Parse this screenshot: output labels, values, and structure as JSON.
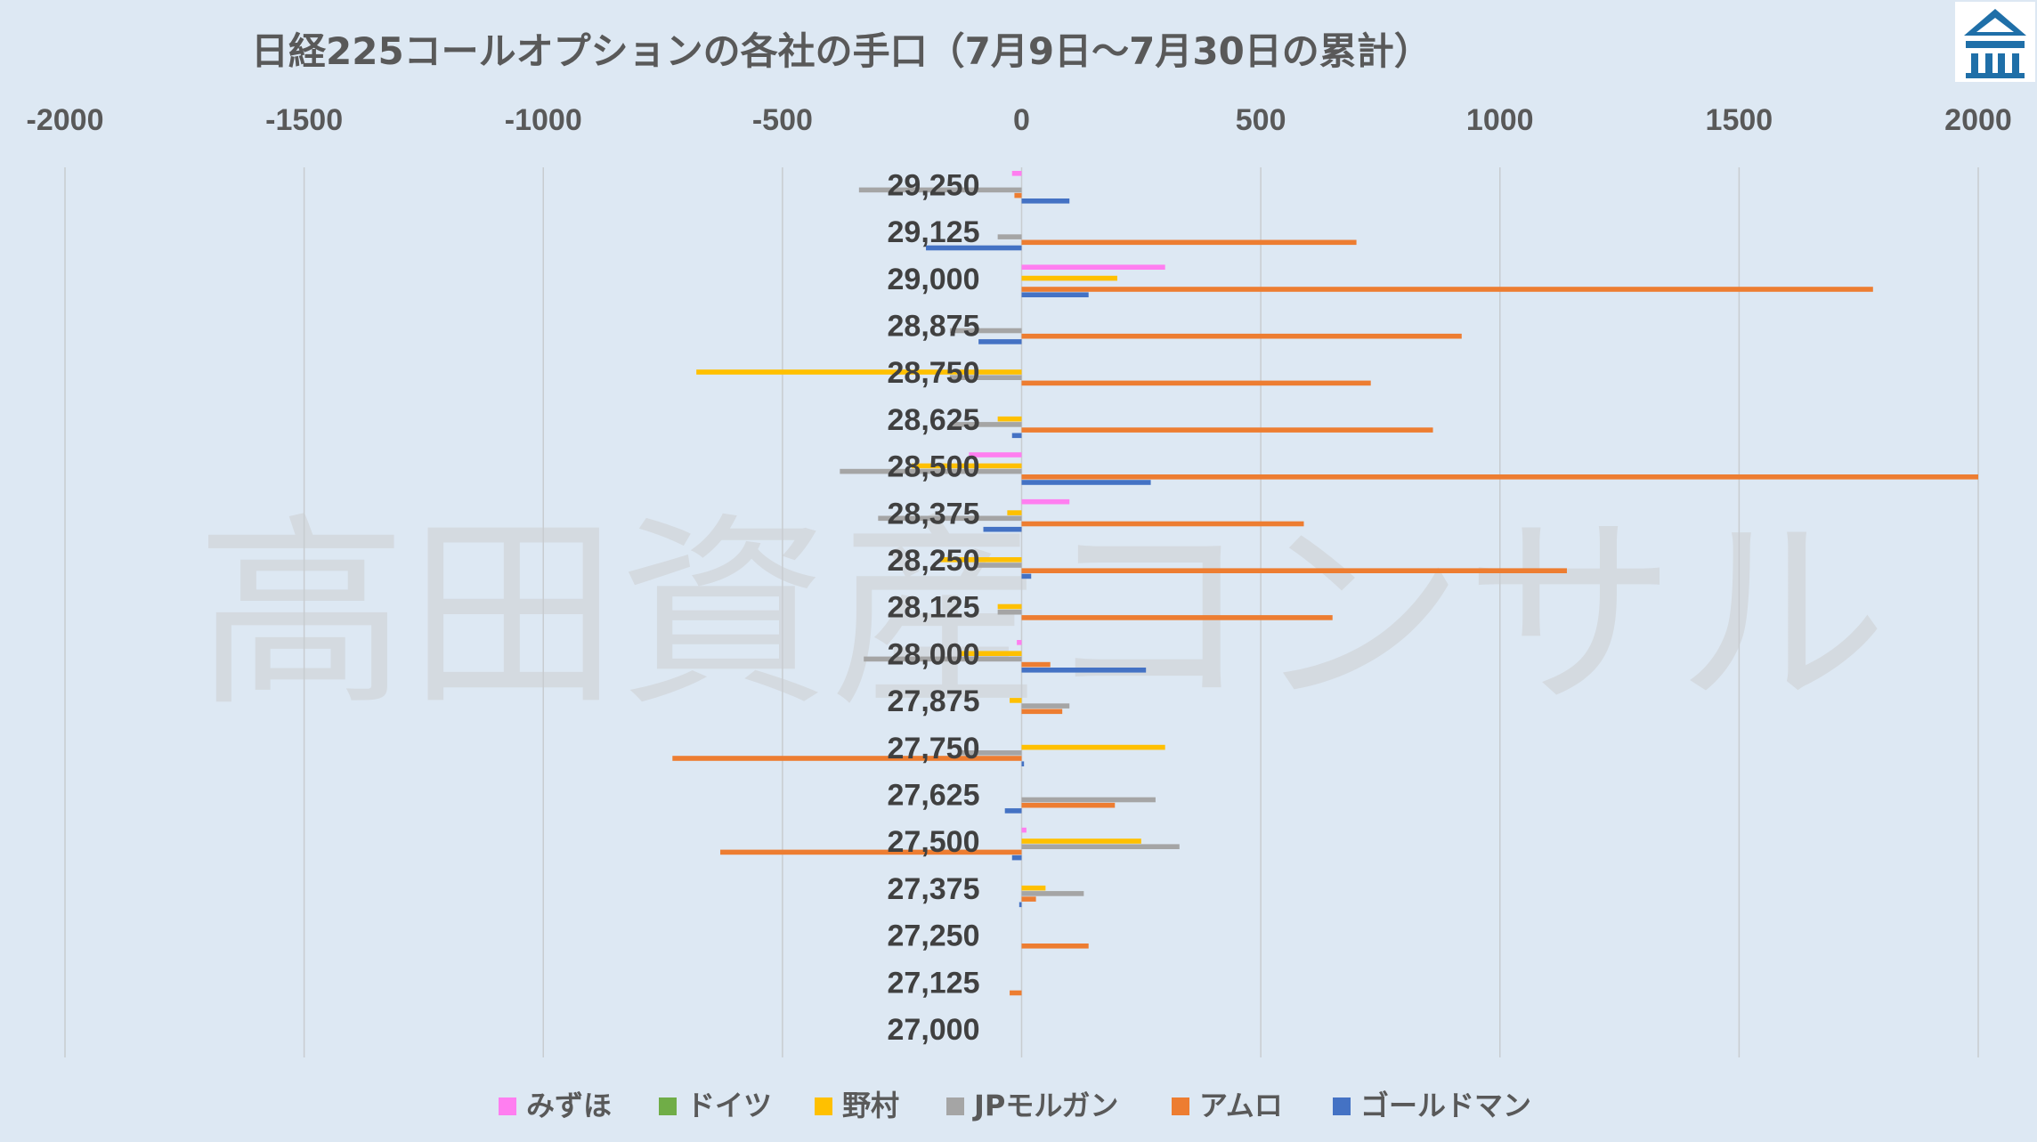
{
  "watermark": "高田資産コンサル",
  "logo": {
    "icon": "takada-logo-icon",
    "colors": {
      "bg": "#ffffff",
      "fg": "#1f6fa8"
    }
  },
  "chart_data": {
    "type": "bar",
    "orientation": "horizontal",
    "title": "日経225コールオプションの各社の手口（7月9日～7月30日の累計）",
    "xlim": [
      -2000,
      2000
    ],
    "x_ticks": [
      -2000,
      -1500,
      -1000,
      -500,
      0,
      500,
      1000,
      1500,
      2000
    ],
    "x_axis_position": "top",
    "grid": "vertical",
    "legend_position": "bottom",
    "categories": [
      "29,250",
      "29,125",
      "29,000",
      "28,875",
      "28,750",
      "28,625",
      "28,500",
      "28,375",
      "28,250",
      "28,125",
      "28,000",
      "27,875",
      "27,750",
      "27,625",
      "27,500",
      "27,375",
      "27,250",
      "27,125",
      "27,000"
    ],
    "series": [
      {
        "name": "みずほ",
        "color": "#ff7ef0",
        "values": [
          -20,
          0,
          300,
          0,
          0,
          0,
          -110,
          100,
          0,
          0,
          -10,
          0,
          0,
          0,
          10,
          0,
          0,
          0,
          0
        ]
      },
      {
        "name": "ドイツ",
        "color": "#70ad47",
        "values": [
          0,
          0,
          0,
          0,
          0,
          0,
          0,
          0,
          0,
          0,
          0,
          0,
          0,
          0,
          0,
          0,
          0,
          0,
          0
        ]
      },
      {
        "name": "野村",
        "color": "#ffc000",
        "values": [
          0,
          0,
          200,
          0,
          -680,
          -50,
          -230,
          -30,
          -170,
          -50,
          -130,
          -25,
          300,
          0,
          250,
          50,
          0,
          0,
          0
        ]
      },
      {
        "name": "JPモルガン",
        "color": "#a5a5a5",
        "values": [
          -340,
          -50,
          0,
          -150,
          -150,
          -150,
          -380,
          -300,
          -100,
          -50,
          -330,
          100,
          -130,
          280,
          330,
          130,
          0,
          0,
          0
        ]
      },
      {
        "name": "アムロ",
        "color": "#ed7d31",
        "values": [
          -15,
          700,
          1780,
          920,
          730,
          860,
          2000,
          590,
          1140,
          650,
          60,
          85,
          -730,
          195,
          -630,
          30,
          140,
          -25,
          0
        ]
      },
      {
        "name": "ゴールドマン",
        "color": "#4472c4",
        "values": [
          100,
          -200,
          140,
          -90,
          0,
          -20,
          270,
          -80,
          20,
          0,
          260,
          0,
          5,
          -35,
          -20,
          -5,
          0,
          0,
          0
        ]
      }
    ]
  }
}
